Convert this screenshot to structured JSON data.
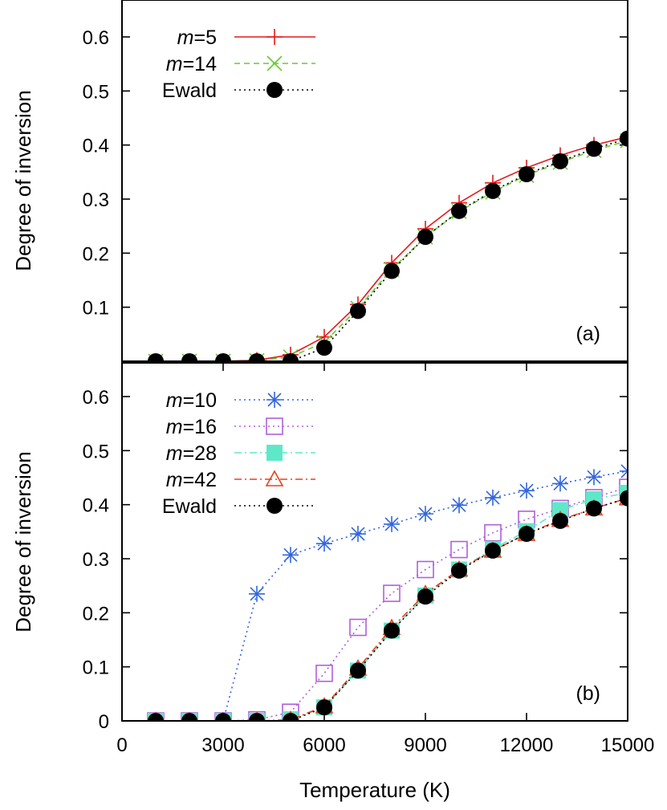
{
  "chart_data": [
    {
      "panel": "top",
      "type": "line",
      "panel_label": "(a)",
      "xlabel": "",
      "ylabel": "Degree of inversion",
      "xlim": [
        0,
        15000
      ],
      "ylim": [
        0,
        0.65
      ],
      "yticks": [
        0.1,
        0.2,
        0.3,
        0.4,
        0.5,
        0.6
      ],
      "ytick_labels": [
        "0.1",
        "0.2",
        "0.3",
        "0.4",
        "0.5",
        "0.6"
      ],
      "legend_position": "top-left",
      "x": [
        1000,
        2000,
        3000,
        4000,
        5000,
        6000,
        7000,
        8000,
        9000,
        10000,
        11000,
        12000,
        13000,
        14000,
        15000
      ],
      "series": [
        {
          "name_italic": "m",
          "name_rest": "=5",
          "color": "#e41a1c",
          "dash": "solid",
          "marker": "plus",
          "values": [
            0,
            0,
            0,
            0.002,
            0.012,
            0.045,
            0.105,
            0.182,
            0.245,
            0.293,
            0.33,
            0.358,
            0.381,
            0.4,
            0.415
          ]
        },
        {
          "name_italic": "m",
          "name_rest": "=14",
          "color": "#66cc33",
          "dash": "dashed",
          "marker": "cross",
          "values": [
            0,
            0,
            0,
            0.001,
            0.008,
            0.035,
            0.098,
            0.17,
            0.23,
            0.277,
            0.313,
            0.344,
            0.368,
            0.39,
            0.408
          ]
        },
        {
          "name_italic": "",
          "name_rest": "Ewald",
          "color": "#000000",
          "dash": "dotted",
          "marker": "filled-circle",
          "values": [
            0,
            0,
            0,
            0,
            0,
            0.025,
            0.093,
            0.167,
            0.23,
            0.278,
            0.315,
            0.346,
            0.37,
            0.393,
            0.412
          ]
        }
      ]
    },
    {
      "panel": "bottom",
      "type": "line",
      "panel_label": "(b)",
      "xlabel": "Temperature (K)",
      "ylabel": "Degree of inversion",
      "xlim": [
        0,
        15000
      ],
      "ylim": [
        0,
        0.65
      ],
      "xticks": [
        0,
        3000,
        6000,
        9000,
        12000,
        15000
      ],
      "xtick_labels": [
        "0",
        "3000",
        "6000",
        "9000",
        "12000",
        "15000"
      ],
      "yticks": [
        0,
        0.1,
        0.2,
        0.3,
        0.4,
        0.5,
        0.6
      ],
      "ytick_labels": [
        "0",
        "0.1",
        "0.2",
        "0.3",
        "0.4",
        "0.5",
        "0.6"
      ],
      "legend_position": "top-left",
      "x": [
        1000,
        2000,
        3000,
        4000,
        5000,
        6000,
        7000,
        8000,
        9000,
        10000,
        11000,
        12000,
        13000,
        14000,
        15000
      ],
      "series": [
        {
          "name_italic": "m",
          "name_rest": "=10",
          "color": "#3366dd",
          "dash": "dotted",
          "marker": "asterisk",
          "values": [
            0,
            0,
            0,
            0.235,
            0.307,
            0.328,
            0.346,
            0.364,
            0.383,
            0.399,
            0.413,
            0.426,
            0.439,
            0.451,
            0.462
          ]
        },
        {
          "name_italic": "m",
          "name_rest": "=16",
          "color": "#b05fdc",
          "dash": "dotted",
          "marker": "open-square",
          "values": [
            0,
            0,
            0,
            0.002,
            0.016,
            0.088,
            0.173,
            0.236,
            0.28,
            0.317,
            0.348,
            0.373,
            0.393,
            0.413,
            0.432
          ]
        },
        {
          "name_italic": "m",
          "name_rest": "=28",
          "color": "#5fe8c8",
          "dash": "dashdot",
          "marker": "filled-square",
          "values": [
            0,
            0,
            0,
            0,
            0.003,
            0.025,
            0.093,
            0.167,
            0.232,
            0.28,
            0.318,
            0.351,
            0.39,
            0.41,
            0.422
          ]
        },
        {
          "name_italic": "m",
          "name_rest": "=42",
          "color": "#e8401c",
          "dash": "dashdot",
          "marker": "open-triangle",
          "values": [
            0,
            0,
            0,
            0,
            0.002,
            0.027,
            0.097,
            0.172,
            0.235,
            0.28,
            0.315,
            0.346,
            0.372,
            0.393,
            0.412
          ]
        },
        {
          "name_italic": "",
          "name_rest": "Ewald",
          "color": "#000000",
          "dash": "dotted",
          "marker": "filled-circle",
          "values": [
            0,
            0,
            0,
            0,
            0,
            0.025,
            0.093,
            0.167,
            0.23,
            0.278,
            0.315,
            0.346,
            0.37,
            0.393,
            0.412
          ]
        }
      ]
    }
  ]
}
